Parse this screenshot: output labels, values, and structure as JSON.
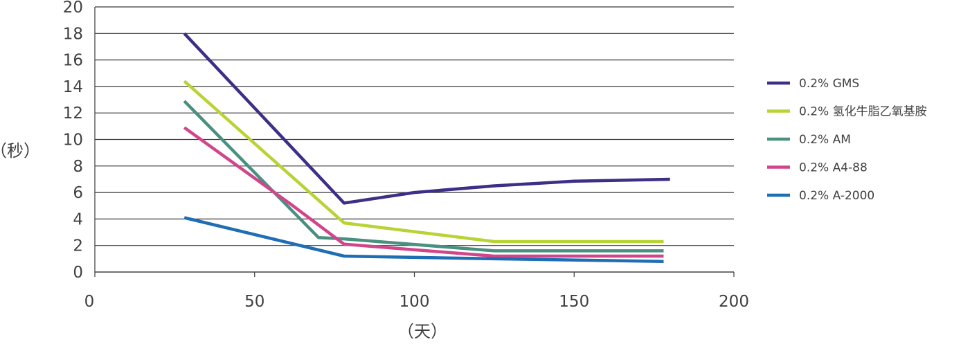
{
  "chart_data": {
    "type": "line",
    "title": "",
    "xlabel": "（天）",
    "ylabel": "（秒）",
    "xlim": [
      0,
      200
    ],
    "ylim": [
      0,
      20
    ],
    "xticks": [
      0,
      50,
      100,
      150,
      200
    ],
    "yticks": [
      0,
      2,
      4,
      6,
      8,
      10,
      12,
      14,
      16,
      18,
      20
    ],
    "grid": "horizontal",
    "legend_position": "right",
    "series": [
      {
        "name": "0.2% GMS",
        "color": "#3b2f86",
        "points": [
          [
            28,
            18.0
          ],
          [
            78,
            5.2
          ],
          [
            100,
            6.0
          ],
          [
            125,
            6.5
          ],
          [
            150,
            6.85
          ],
          [
            180,
            7.0
          ]
        ]
      },
      {
        "name": "0.2% 氢化牛脂乙氧基胺",
        "color": "#b8d334",
        "points": [
          [
            28,
            14.4
          ],
          [
            78,
            3.7
          ],
          [
            125,
            2.3
          ],
          [
            178,
            2.3
          ]
        ]
      },
      {
        "name": "0.2% AM",
        "color": "#4a9080",
        "points": [
          [
            28,
            12.9
          ],
          [
            70,
            2.6
          ],
          [
            78,
            2.5
          ],
          [
            125,
            1.6
          ],
          [
            178,
            1.6
          ]
        ]
      },
      {
        "name": "0.2% A4-88",
        "color": "#d1458a",
        "points": [
          [
            28,
            10.9
          ],
          [
            62,
            5.0
          ],
          [
            78,
            2.1
          ],
          [
            125,
            1.2
          ],
          [
            178,
            1.2
          ]
        ]
      },
      {
        "name": "0.2% A-2000",
        "color": "#1f6db3",
        "points": [
          [
            28,
            4.1
          ],
          [
            78,
            1.2
          ],
          [
            125,
            1.0
          ],
          [
            178,
            0.8
          ]
        ]
      }
    ]
  }
}
